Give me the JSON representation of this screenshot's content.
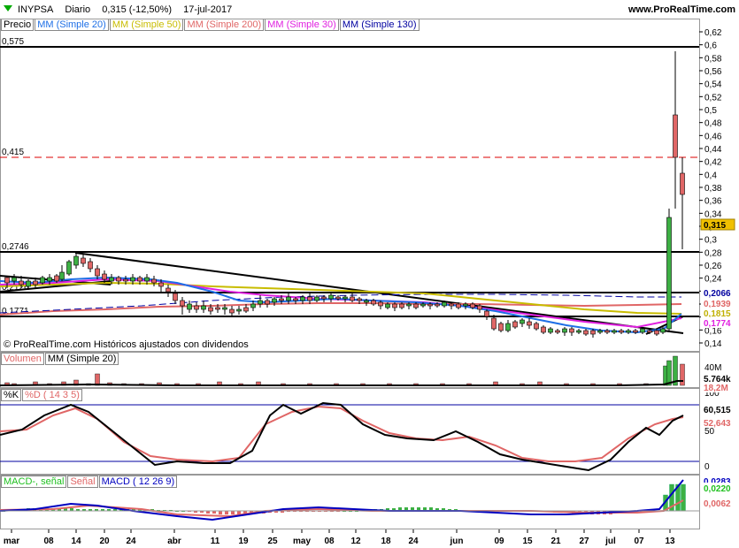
{
  "header": {
    "symbol": "INYPSA",
    "period": "Diario",
    "last": "0,315 (-12,50%)",
    "date": "17-jul-2017",
    "site": "www.ProRealTime.com"
  },
  "price_panel": {
    "legend": [
      "Precio",
      "MM (Simple 20)",
      "MM (Simple 50)",
      "MM (Simple 200)",
      "MM (Simple 30)",
      "MM (Simple 130)"
    ],
    "legend_colors": [
      "#000000",
      "#1e6fe6",
      "#d4c700",
      "#e06666",
      "#e020e0",
      "#0000a0"
    ],
    "axis_ticks": [
      "0,62",
      "0,6",
      "0,58",
      "0,56",
      "0,54",
      "0,52",
      "0,5",
      "0,48",
      "0,46",
      "0,44",
      "0,42",
      "0,4",
      "0,38",
      "0,36",
      "0,34",
      "0,32",
      "0,3",
      "0,28",
      "0,26",
      "0,24",
      "0,22",
      "0,2",
      "0,18",
      "0,16",
      "0,14"
    ],
    "level_labels": [
      "0,575",
      "0,415",
      "0,2746",
      "0,2126",
      "0,1771"
    ],
    "value_tags": [
      {
        "text": "0,315",
        "bg": "#f0c000",
        "color": "#000000"
      },
      {
        "text": "0,2066",
        "bg": "#ffffff",
        "color": "#0000a0"
      },
      {
        "text": "0,1939",
        "bg": "#ffffff",
        "color": "#e06666"
      },
      {
        "text": "0,1815",
        "bg": "#ffffff",
        "color": "#c0b000"
      },
      {
        "text": "0,1774",
        "bg": "#ffffff",
        "color": "#e020e0"
      }
    ],
    "copyright": "© ProRealTime.com  Históricos ajustados con dividendos"
  },
  "volume_panel": {
    "legend": [
      "Volumen",
      "MM (Simple 20)"
    ],
    "legend_colors": [
      "#e06666",
      "#000000"
    ],
    "axis_ticks": [
      "40M"
    ],
    "value_tags": [
      {
        "text": "18,2M",
        "bg": "#ffffff",
        "color": "#e06666"
      },
      {
        "text": "5.764k",
        "bg": "#ffffff",
        "color": "#000000"
      }
    ]
  },
  "stoch_panel": {
    "legend": [
      "%K",
      "%D ( 14 3 5)"
    ],
    "legend_colors": [
      "#000000",
      "#e06666"
    ],
    "axis_ticks": [
      "100",
      "50",
      "0"
    ],
    "value_tags": [
      {
        "text": "60,515",
        "bg": "#ffffff",
        "color": "#000000"
      },
      {
        "text": "52,643",
        "bg": "#ffffff",
        "color": "#e06666"
      }
    ]
  },
  "macd_panel": {
    "legend": [
      "MACD-, señal",
      "Señal",
      "MACD ( 12 26 9)"
    ],
    "legend_colors": [
      "#20c020",
      "#e06666",
      "#0000c0"
    ],
    "value_tags": [
      {
        "text": "0,0283",
        "bg": "#ffffff",
        "color": "#0000c0"
      },
      {
        "text": "0,0220",
        "bg": "#ffffff",
        "color": "#20c020"
      },
      {
        "text": "0,0062",
        "bg": "#ffffff",
        "color": "#e06666"
      }
    ]
  },
  "x_axis": [
    "mar",
    "08",
    "14",
    "20",
    "24",
    "abr",
    "11",
    "19",
    "25",
    "may",
    "08",
    "12",
    "18",
    "24",
    "jun",
    "09",
    "15",
    "21",
    "27",
    "jul",
    "07",
    "13"
  ],
  "chart_data": {
    "type": "line",
    "title": "INYPSA Diario",
    "x": [
      "mar",
      "08",
      "14",
      "20",
      "24",
      "abr",
      "11",
      "19",
      "25",
      "may",
      "08",
      "12",
      "18",
      "24",
      "jun",
      "09",
      "15",
      "21",
      "27",
      "jul",
      "07",
      "13"
    ],
    "series": [
      {
        "name": "Precio",
        "values": [
          0.225,
          0.228,
          0.272,
          0.255,
          0.232,
          0.197,
          0.19,
          0.186,
          0.2,
          0.207,
          0.211,
          0.208,
          0.2,
          0.199,
          0.196,
          0.172,
          0.165,
          0.162,
          0.16,
          0.163,
          0.162,
          0.315
        ]
      },
      {
        "name": "MM (Simple 20)",
        "values": [
          0.222,
          0.225,
          0.232,
          0.235,
          0.233,
          0.225,
          0.205,
          0.195,
          0.195,
          0.2,
          0.205,
          0.206,
          0.205,
          0.202,
          0.198,
          0.188,
          0.178,
          0.17,
          0.165,
          0.163,
          0.162,
          0.18
        ]
      },
      {
        "name": "MM (Simple 200)",
        "values": [
          0.175,
          0.178,
          0.182,
          0.186,
          0.19,
          0.192,
          0.193,
          0.193,
          0.194,
          0.195,
          0.196,
          0.196,
          0.196,
          0.196,
          0.196,
          0.195,
          0.195,
          0.194,
          0.194,
          0.194,
          0.193,
          0.194
        ]
      }
    ],
    "ylim": [
      0.13,
      0.62
    ],
    "horizontal_levels": [
      0.575,
      0.415,
      0.2746,
      0.2126,
      0.1771
    ]
  }
}
